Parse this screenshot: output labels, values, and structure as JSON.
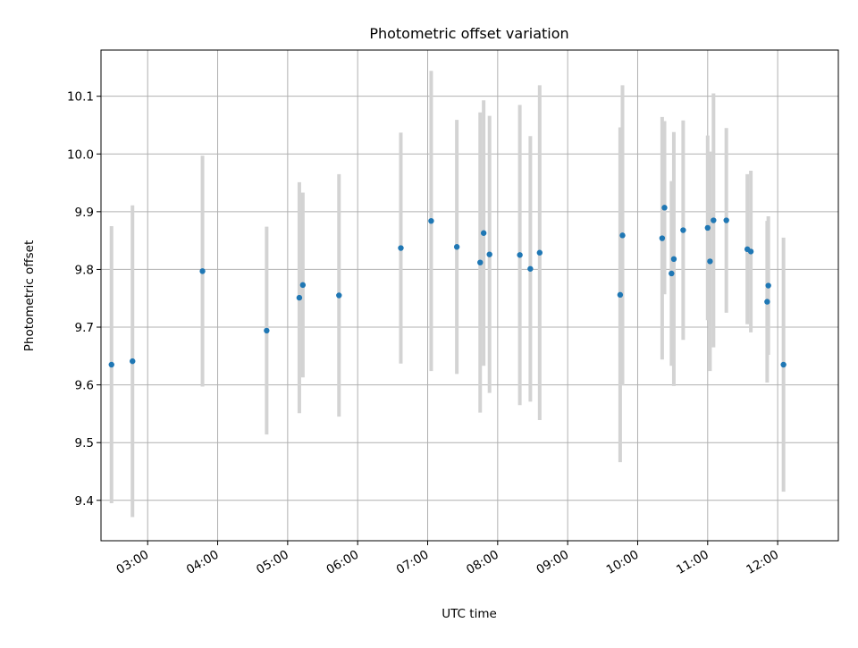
{
  "chart_data": {
    "type": "scatter",
    "title": "Photometric offset variation",
    "xlabel": "UTC time",
    "ylabel": "Photometric offset",
    "xlim": [
      "02:20",
      "12:52"
    ],
    "ylim": [
      9.33,
      10.18
    ],
    "grid": true,
    "x_ticks": [
      "03:00",
      "04:00",
      "05:00",
      "06:00",
      "07:00",
      "08:00",
      "09:00",
      "10:00",
      "11:00",
      "12:00"
    ],
    "y_ticks": [
      9.4,
      9.5,
      9.6,
      9.7,
      9.8,
      9.9,
      10.0,
      10.1
    ],
    "y_tick_labels": [
      "9.4",
      "9.5",
      "9.6",
      "9.7",
      "9.8",
      "9.9",
      "10.0",
      "10.1"
    ],
    "colors": {
      "points": "#1f77b4",
      "errorbars": "#d3d3d3",
      "grid": "#b0b0b0"
    },
    "series": [
      {
        "points": [
          {
            "x": "02:29",
            "y": 9.635,
            "err": 0.24
          },
          {
            "x": "02:47",
            "y": 9.641,
            "err": 0.27
          },
          {
            "x": "03:47",
            "y": 9.797,
            "err": 0.2
          },
          {
            "x": "04:42",
            "y": 9.694,
            "err": 0.18
          },
          {
            "x": "05:10",
            "y": 9.751,
            "err": 0.2
          },
          {
            "x": "05:13",
            "y": 9.773,
            "err": 0.16
          },
          {
            "x": "05:44",
            "y": 9.755,
            "err": 0.21
          },
          {
            "x": "06:37",
            "y": 9.837,
            "err": 0.2
          },
          {
            "x": "07:03",
            "y": 9.884,
            "err": 0.26
          },
          {
            "x": "07:25",
            "y": 9.839,
            "err": 0.22
          },
          {
            "x": "07:45",
            "y": 9.812,
            "err": 0.26
          },
          {
            "x": "07:48",
            "y": 9.863,
            "err": 0.23
          },
          {
            "x": "07:53",
            "y": 9.826,
            "err": 0.24
          },
          {
            "x": "08:19",
            "y": 9.825,
            "err": 0.26
          },
          {
            "x": "08:28",
            "y": 9.801,
            "err": 0.23
          },
          {
            "x": "08:36",
            "y": 9.829,
            "err": 0.29
          },
          {
            "x": "09:45",
            "y": 9.756,
            "err": 0.29
          },
          {
            "x": "09:47",
            "y": 9.859,
            "err": 0.26
          },
          {
            "x": "10:21",
            "y": 9.854,
            "err": 0.21
          },
          {
            "x": "10:23",
            "y": 9.907,
            "err": 0.15
          },
          {
            "x": "10:29",
            "y": 9.793,
            "err": 0.16
          },
          {
            "x": "10:31",
            "y": 9.818,
            "err": 0.22
          },
          {
            "x": "10:39",
            "y": 9.868,
            "err": 0.19
          },
          {
            "x": "11:00",
            "y": 9.872,
            "err": 0.16
          },
          {
            "x": "11:02",
            "y": 9.814,
            "err": 0.19
          },
          {
            "x": "11:05",
            "y": 9.885,
            "err": 0.22
          },
          {
            "x": "11:16",
            "y": 9.885,
            "err": 0.16
          },
          {
            "x": "11:34",
            "y": 9.835,
            "err": 0.13
          },
          {
            "x": "11:37",
            "y": 9.831,
            "err": 0.14
          },
          {
            "x": "11:51",
            "y": 9.744,
            "err": 0.14
          },
          {
            "x": "11:52",
            "y": 9.772,
            "err": 0.12
          },
          {
            "x": "12:05",
            "y": 9.635,
            "err": 0.22
          }
        ]
      }
    ]
  }
}
